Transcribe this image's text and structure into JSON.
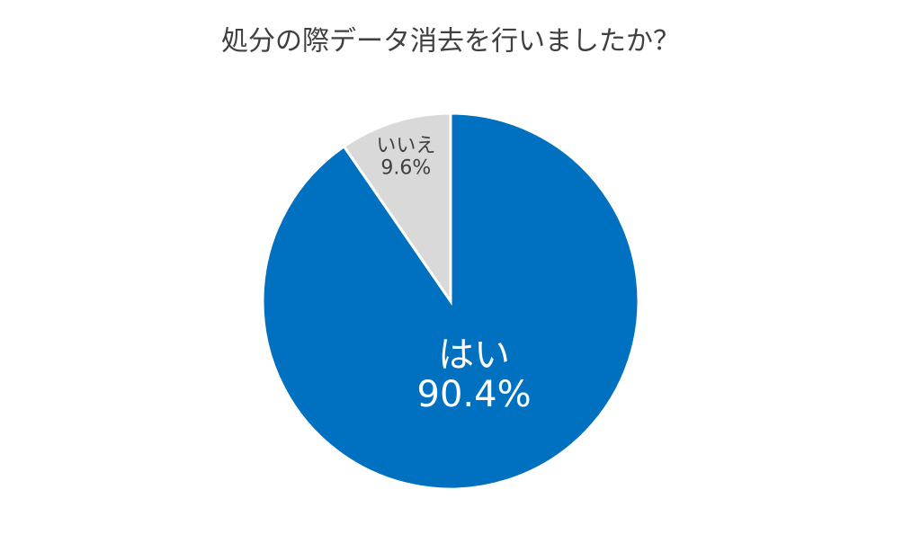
{
  "chart_data": {
    "type": "pie",
    "title": "処分の際データ消去を行いましたか？",
    "categories": [
      "はい",
      "いいえ"
    ],
    "values": [
      90.4,
      9.6
    ],
    "value_labels": [
      "90.4%",
      "9.6%"
    ],
    "colors": [
      "#0070c0",
      "#d9d9d9"
    ]
  }
}
